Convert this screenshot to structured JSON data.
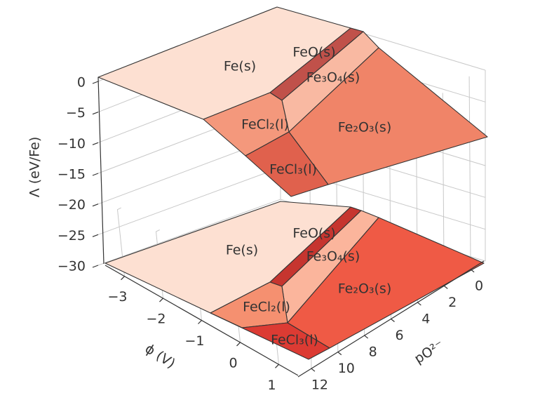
{
  "chart_data": {
    "type": "surface3d",
    "zlabel": "Λ (eV/Fe)",
    "xlabel": "ϕ (V)",
    "ylabel": "pO²⁻",
    "zlim": [
      -30,
      0
    ],
    "zticks": [
      0,
      {
        "value": -5,
        "label": "−5"
      },
      {
        "value": -10,
        "label": "−10"
      },
      {
        "value": -15,
        "label": "−15"
      },
      {
        "value": -20,
        "label": "−20"
      },
      {
        "value": -25,
        "label": "−25"
      },
      {
        "value": -30,
        "label": "−30"
      }
    ],
    "xlim": [
      -3.5,
      1.5
    ],
    "xticks": [
      {
        "value": -3,
        "label": "−3"
      },
      {
        "value": -2,
        "label": "−2"
      },
      {
        "value": -1,
        "label": "−1"
      },
      0,
      1
    ],
    "ylim": [
      -1,
      13
    ],
    "yticks": [
      0,
      2,
      4,
      6,
      8,
      10,
      12
    ],
    "regions": [
      "Fe(s)",
      "FeO(s)",
      "Fe₃O₄(s)",
      "FeCl₂(l)",
      "Fe₂O₃(s)",
      "FeCl₃(l)"
    ],
    "grid": true
  }
}
